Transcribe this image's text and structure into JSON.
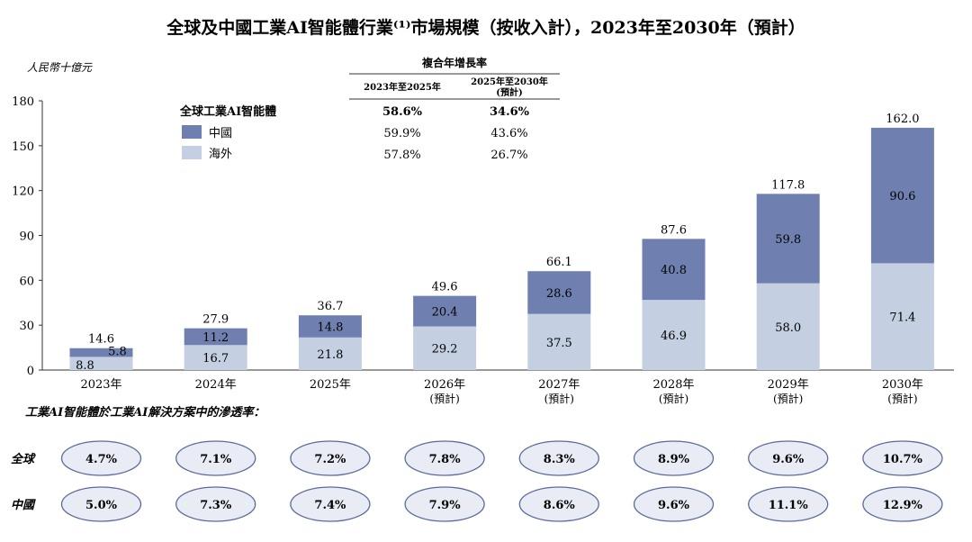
{
  "title": "全球及中國工業AI智能體行業⁽¹⁾市場規模（按收入計），2023年至2030年（預計）",
  "colors": {
    "china": "#6f80b0",
    "overseas": "#c4cfe1",
    "ellipse_fill": "#e9ecf5",
    "ellipse_stroke": "#5a6a9c"
  },
  "chart_data": {
    "type": "bar",
    "stacked": true,
    "title": "全球及中國工業AI智能體行業⁽¹⁾市場規模（按收入計），2023年至2030年（預計）",
    "ylabel": "人民幣十億元",
    "ylim": [
      0,
      180
    ],
    "yticks": [
      0,
      30,
      60,
      90,
      120,
      150,
      180
    ],
    "categories": [
      "2023年",
      "2024年",
      "2025年",
      "2026年",
      "2027年",
      "2028年",
      "2029年",
      "2030年"
    ],
    "category_sublabels": [
      "",
      "",
      "",
      "(預計)",
      "(預計)",
      "(預計)",
      "(預計)",
      "(預計)"
    ],
    "series": [
      {
        "name": "海外",
        "values": [
          8.8,
          16.7,
          21.8,
          29.2,
          37.5,
          46.9,
          58.0,
          71.4
        ]
      },
      {
        "name": "中國",
        "values": [
          5.8,
          11.2,
          14.8,
          20.4,
          28.6,
          40.8,
          59.8,
          90.6
        ]
      }
    ],
    "totals": [
      "14.6",
      "27.9",
      "36.7",
      "49.6",
      "66.1",
      "87.6",
      "117.8",
      "162.0"
    ],
    "overseas_labels": [
      "8.8",
      "16.7",
      "21.8",
      "29.2",
      "37.5",
      "46.9",
      "58.0",
      "71.4"
    ],
    "china_labels": [
      "5.8",
      "11.2",
      "14.8",
      "20.4",
      "28.6",
      "40.8",
      "59.8",
      "90.6"
    ],
    "legend": {
      "title": "全球工業AI智能體",
      "items": [
        "中國",
        "海外"
      ],
      "position": "top-left"
    }
  },
  "cagr_table": {
    "header": "複合年增長率",
    "col1": "2023年至2025年",
    "col2": "2025年至2030年",
    "col2_sub": "(預計)",
    "rows": [
      {
        "v1": "58.6%",
        "v2": "34.6%"
      },
      {
        "v1": "59.9%",
        "v2": "43.6%"
      },
      {
        "v1": "57.8%",
        "v2": "26.7%"
      }
    ]
  },
  "penetration": {
    "title": "工業AI智能體於工業AI解決方案中的滲透率：",
    "rows": [
      {
        "label": "全球",
        "values": [
          "4.7%",
          "7.1%",
          "7.2%",
          "7.8%",
          "8.3%",
          "8.9%",
          "9.6%",
          "10.7%"
        ]
      },
      {
        "label": "中國",
        "values": [
          "5.0%",
          "7.3%",
          "7.4%",
          "7.9%",
          "8.6%",
          "9.6%",
          "11.1%",
          "12.9%"
        ]
      }
    ]
  }
}
